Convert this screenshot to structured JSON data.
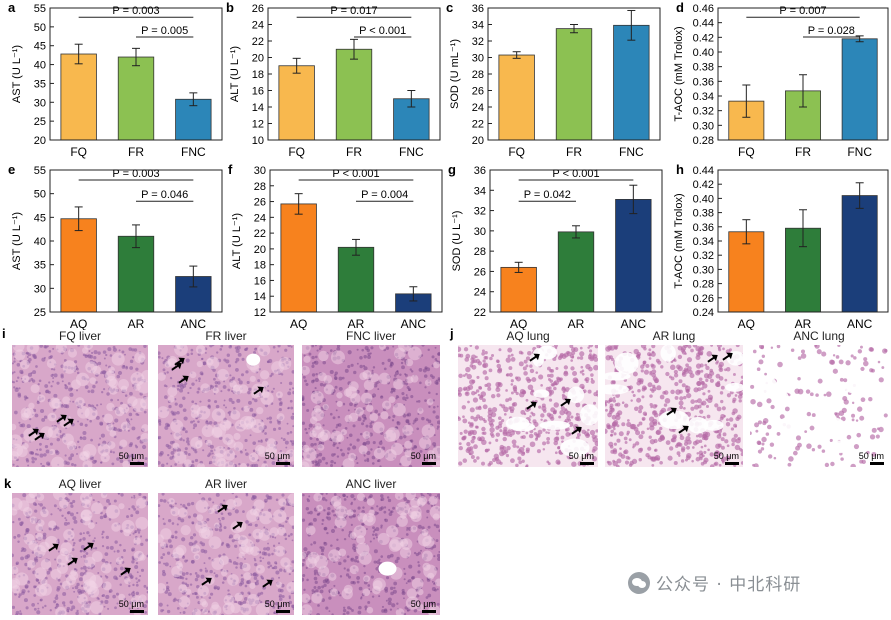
{
  "chart_data": [
    {
      "label": "a",
      "type": "bar",
      "categories": [
        "FQ",
        "FR",
        "FNC"
      ],
      "values": [
        42.8,
        42.0,
        30.8
      ],
      "errors": [
        2.6,
        2.3,
        1.7
      ],
      "colors": [
        "#F8B84E",
        "#8CC152",
        "#2C86B8"
      ],
      "ylabel": "AST (U L⁻¹)",
      "ylim": [
        20,
        55
      ],
      "yticks": [
        20,
        25,
        30,
        35,
        40,
        45,
        50,
        55
      ],
      "annotations": [
        {
          "text": "P = 0.003",
          "from": "FQ",
          "to": "FNC"
        },
        {
          "text": "P = 0.005",
          "from": "FR",
          "to": "FNC"
        }
      ]
    },
    {
      "label": "b",
      "type": "bar",
      "categories": [
        "FQ",
        "FR",
        "FNC"
      ],
      "values": [
        19.0,
        21.0,
        15.0
      ],
      "errors": [
        0.9,
        1.2,
        1.0
      ],
      "colors": [
        "#F8B84E",
        "#8CC152",
        "#2C86B8"
      ],
      "ylabel": "ALT (U L⁻¹)",
      "ylim": [
        10,
        26
      ],
      "yticks": [
        10,
        12,
        14,
        16,
        18,
        20,
        22,
        24,
        26
      ],
      "annotations": [
        {
          "text": "P = 0.017",
          "from": "FQ",
          "to": "FNC"
        },
        {
          "text": "P < 0.001",
          "from": "FR",
          "to": "FNC"
        }
      ]
    },
    {
      "label": "c",
      "type": "bar",
      "categories": [
        "FQ",
        "FR",
        "FNC"
      ],
      "values": [
        30.3,
        33.5,
        33.9
      ],
      "errors": [
        0.4,
        0.5,
        1.8
      ],
      "colors": [
        "#F8B84E",
        "#8CC152",
        "#2C86B8"
      ],
      "ylabel": "SOD (U mL⁻¹)",
      "ylim": [
        20,
        36
      ],
      "yticks": [
        20,
        22,
        24,
        26,
        28,
        30,
        32,
        34,
        36
      ],
      "annotations": []
    },
    {
      "label": "d",
      "type": "bar",
      "categories": [
        "FQ",
        "FR",
        "FNC"
      ],
      "values": [
        0.333,
        0.347,
        0.418
      ],
      "errors": [
        0.022,
        0.022,
        0.004
      ],
      "colors": [
        "#F8B84E",
        "#8CC152",
        "#2C86B8"
      ],
      "ylabel": "T-AOC (mM Trolox)",
      "ylim": [
        0.28,
        0.46
      ],
      "yticks": [
        0.28,
        0.3,
        0.32,
        0.34,
        0.36,
        0.38,
        0.4,
        0.42,
        0.44,
        0.46
      ],
      "annotations": [
        {
          "text": "P = 0.007",
          "from": "FQ",
          "to": "FNC"
        },
        {
          "text": "P = 0.028",
          "from": "FR",
          "to": "FNC"
        }
      ]
    },
    {
      "label": "e",
      "type": "bar",
      "categories": [
        "AQ",
        "AR",
        "ANC"
      ],
      "values": [
        44.7,
        41.0,
        32.5
      ],
      "errors": [
        2.5,
        2.4,
        2.2
      ],
      "colors": [
        "#F7821E",
        "#2E7D3A",
        "#1B3E7A"
      ],
      "ylabel": "AST (U L⁻¹)",
      "ylim": [
        25,
        55
      ],
      "yticks": [
        25,
        30,
        35,
        40,
        45,
        50,
        55
      ],
      "annotations": [
        {
          "text": "P = 0.003",
          "from": "AQ",
          "to": "ANC"
        },
        {
          "text": "P = 0.046",
          "from": "AR",
          "to": "ANC"
        }
      ]
    },
    {
      "label": "f",
      "type": "bar",
      "categories": [
        "AQ",
        "AR",
        "ANC"
      ],
      "values": [
        25.7,
        20.2,
        14.3
      ],
      "errors": [
        1.3,
        1.0,
        0.9
      ],
      "colors": [
        "#F7821E",
        "#2E7D3A",
        "#1B3E7A"
      ],
      "ylabel": "ALT (U L⁻¹)",
      "ylim": [
        12,
        30
      ],
      "yticks": [
        12,
        14,
        16,
        18,
        20,
        22,
        24,
        26,
        28,
        30
      ],
      "annotations": [
        {
          "text": "P < 0.001",
          "from": "AQ",
          "to": "ANC"
        },
        {
          "text": "P = 0.004",
          "from": "AR",
          "to": "ANC"
        }
      ]
    },
    {
      "label": "g",
      "type": "bar",
      "categories": [
        "AQ",
        "AR",
        "ANC"
      ],
      "values": [
        26.4,
        29.9,
        33.1
      ],
      "errors": [
        0.5,
        0.6,
        1.4
      ],
      "colors": [
        "#F7821E",
        "#2E7D3A",
        "#1B3E7A"
      ],
      "ylabel": "SOD (U L⁻¹)",
      "ylim": [
        22,
        36
      ],
      "yticks": [
        22,
        24,
        26,
        28,
        30,
        32,
        34,
        36
      ],
      "annotations": [
        {
          "text": "P < 0.001",
          "from": "AQ",
          "to": "ANC"
        },
        {
          "text": "P = 0.042",
          "from": "AQ",
          "to": "AR"
        }
      ]
    },
    {
      "label": "h",
      "type": "bar",
      "categories": [
        "AQ",
        "AR",
        "ANC"
      ],
      "values": [
        0.353,
        0.358,
        0.404
      ],
      "errors": [
        0.017,
        0.026,
        0.018
      ],
      "colors": [
        "#F7821E",
        "#2E7D3A",
        "#1B3E7A"
      ],
      "ylabel": "T-AOC (mM Trolox)",
      "ylim": [
        0.24,
        0.44
      ],
      "yticks": [
        0.24,
        0.26,
        0.28,
        0.3,
        0.32,
        0.34,
        0.36,
        0.38,
        0.4,
        0.42,
        0.44
      ],
      "annotations": []
    }
  ],
  "histology": {
    "i": {
      "label": "i",
      "panels": [
        {
          "title": "FQ liver",
          "scale": "50 μm"
        },
        {
          "title": "FR liver",
          "scale": "50 μm"
        },
        {
          "title": "FNC liver",
          "scale": "50 μm"
        }
      ]
    },
    "j": {
      "label": "j",
      "panels": [
        {
          "title": "AQ lung",
          "scale": "50 μm"
        },
        {
          "title": "AR lung",
          "scale": "50 μm"
        },
        {
          "title": "ANC lung",
          "scale": "50 μm"
        }
      ]
    },
    "k": {
      "label": "k",
      "panels": [
        {
          "title": "AQ liver",
          "scale": "50 μm"
        },
        {
          "title": "AR liver",
          "scale": "50 μm"
        },
        {
          "title": "ANC liver",
          "scale": "50 μm"
        }
      ]
    }
  },
  "watermark": {
    "text": "公众号 · 中北科研"
  },
  "colors": {
    "liver_tissue": "#d8a7c9",
    "liver_dense": "#c98fbd",
    "lung_tissue": "#e6b4d3",
    "background": "#ffffff"
  }
}
